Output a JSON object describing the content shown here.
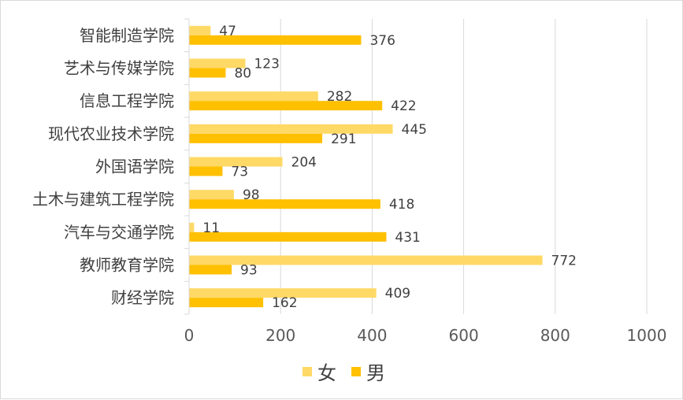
{
  "chart_data": {
    "type": "bar",
    "orientation": "horizontal",
    "categories": [
      "智能制造学院",
      "艺术与传媒学院",
      "信息工程学院",
      "现代农业技术学院",
      "外国语学院",
      "土木与建筑工程学院",
      "汽车与交通学院",
      "教师教育学院",
      "财经学院"
    ],
    "series": [
      {
        "name": "女",
        "color": "#ffd966",
        "values": [
          47,
          123,
          282,
          445,
          204,
          98,
          11,
          772,
          409
        ]
      },
      {
        "name": "男",
        "color": "#ffc000",
        "values": [
          376,
          80,
          422,
          291,
          73,
          418,
          431,
          93,
          162
        ]
      }
    ],
    "x_ticks": [
      "0",
      "200",
      "400",
      "600",
      "800",
      "1000"
    ],
    "xlim": [
      0,
      1000
    ],
    "grid": true,
    "legend": "bottom"
  }
}
